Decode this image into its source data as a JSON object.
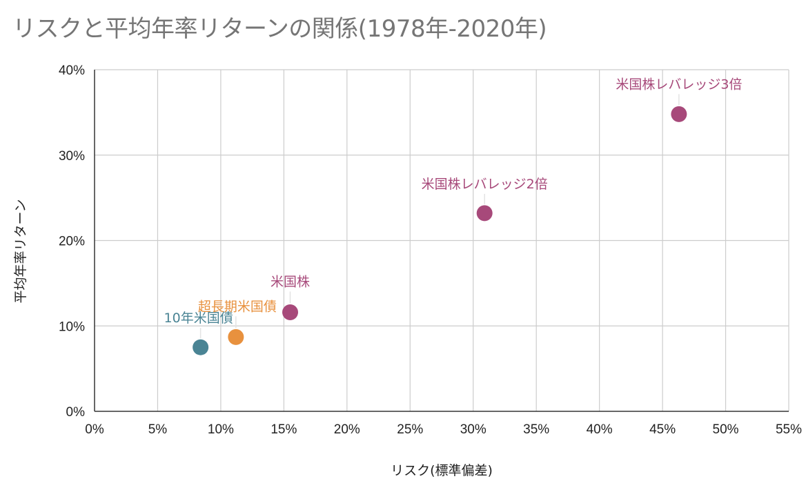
{
  "chart_data": {
    "type": "scatter",
    "title": "リスクと平均年率リターンの関係(1978年-2020年)",
    "xlabel": "リスク(標準偏差)",
    "ylabel": "平均年率リターン",
    "xlim": [
      0,
      0.55
    ],
    "ylim": [
      0,
      0.4
    ],
    "x_ticks": [
      0,
      0.05,
      0.1,
      0.15,
      0.2,
      0.25,
      0.3,
      0.35,
      0.4,
      0.45,
      0.5,
      0.55
    ],
    "y_ticks": [
      0,
      0.1,
      0.2,
      0.3,
      0.4
    ],
    "x_tick_labels": [
      "0%",
      "5%",
      "10%",
      "15%",
      "20%",
      "25%",
      "30%",
      "35%",
      "40%",
      "45%",
      "50%",
      "55%"
    ],
    "y_tick_labels": [
      "0%",
      "10%",
      "20%",
      "30%",
      "40%"
    ],
    "grid": true,
    "legend": "none",
    "series": [
      {
        "name": "10年米国債",
        "x": 0.084,
        "y": 0.075,
        "color": "#4a8494"
      },
      {
        "name": "超長期米国債",
        "x": 0.112,
        "y": 0.087,
        "color": "#e8913e"
      },
      {
        "name": "米国株",
        "x": 0.155,
        "y": 0.116,
        "color": "#a7497a"
      },
      {
        "name": "米国株レバレッジ2倍",
        "x": 0.309,
        "y": 0.232,
        "color": "#a7497a"
      },
      {
        "name": "米国株レバレッジ3倍",
        "x": 0.463,
        "y": 0.348,
        "color": "#a7497a"
      }
    ]
  }
}
